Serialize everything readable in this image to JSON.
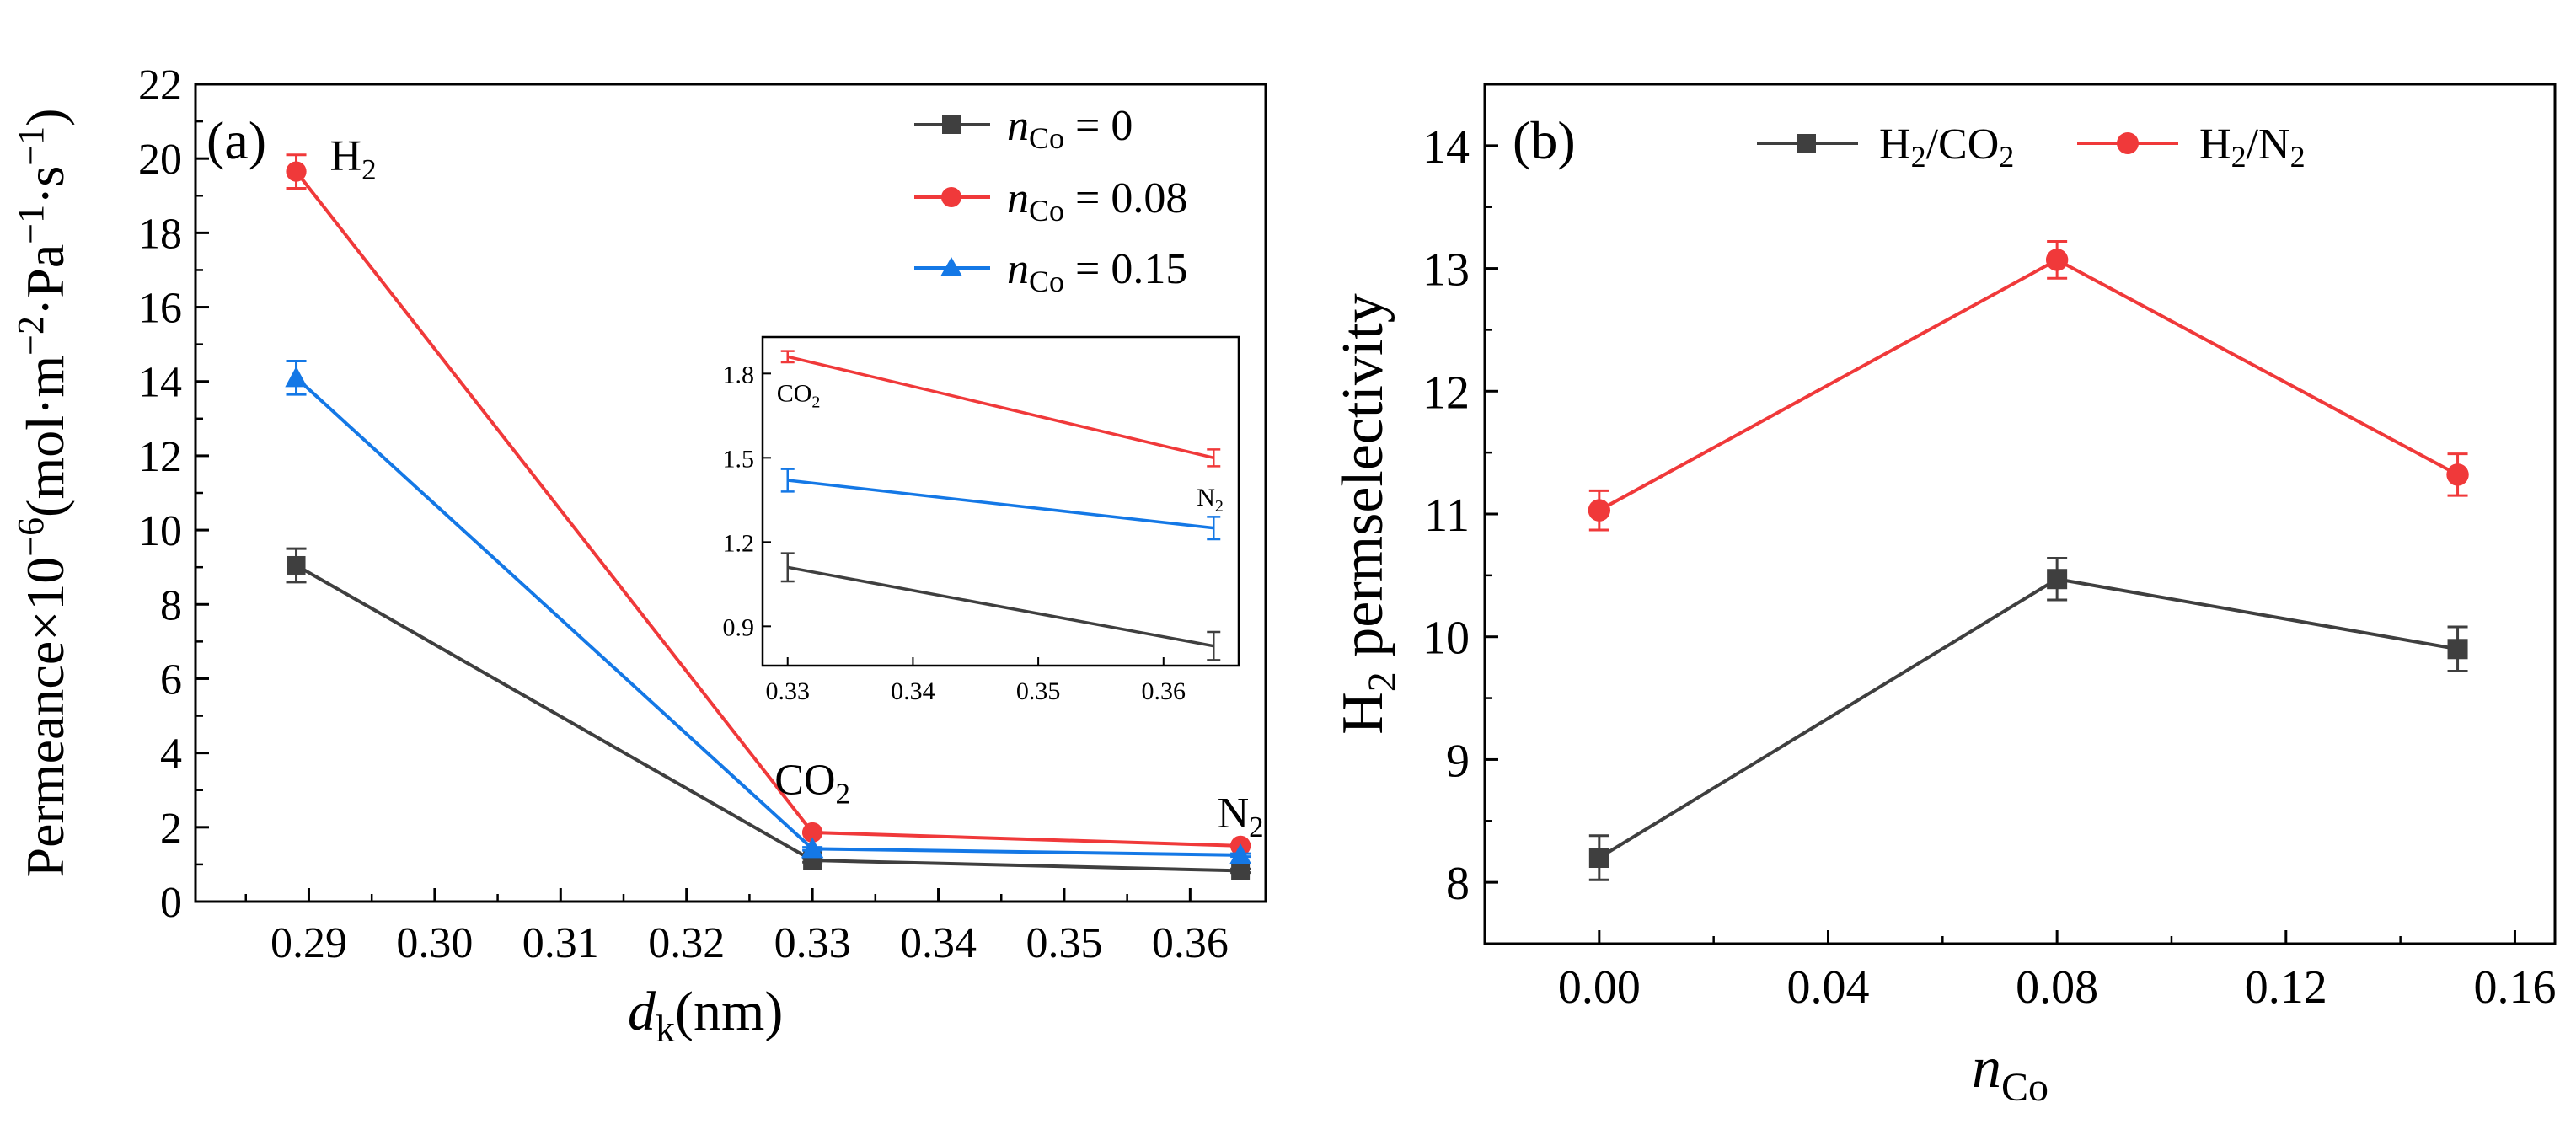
{
  "chart_data": [
    {
      "panel_label": "(a)",
      "type": "line",
      "x": [
        0.289,
        0.33,
        0.364
      ],
      "xlim": [
        0.281,
        0.366
      ],
      "xticks": [
        "0.29",
        "0.30",
        "0.31",
        "0.32",
        "0.33",
        "0.34",
        "0.35",
        "0.36"
      ],
      "ylim": [
        0,
        22
      ],
      "yticks": [
        "0",
        "2",
        "4",
        "6",
        "8",
        "10",
        "12",
        "14",
        "16",
        "18",
        "20",
        "22"
      ],
      "xlabel": {
        "main": "d",
        "sub": "k",
        "rest": "(nm)"
      },
      "ylabel": {
        "p1": "Permeance×10",
        "sup1": "−6",
        "p2": "(mol·m",
        "sup2": "−2",
        "p3": "·Pa",
        "sup3": "−1",
        "p4": "·s",
        "sup4": "−1",
        "p5": ")"
      },
      "gas_labels": [
        {
          "main": "H",
          "sub": "2",
          "x": 0.289,
          "y": 20.1
        },
        {
          "main": "CO",
          "sub": "2",
          "x": 0.33,
          "y": 3.3
        },
        {
          "main": "N",
          "sub": "2",
          "x": 0.364,
          "y": 2.4
        }
      ],
      "legend": {
        "position": "top-right"
      },
      "series": [
        {
          "name_main": "n",
          "name_sub": "Co",
          "name_rest": " = 0",
          "color": "#3f3f3f",
          "marker": "square",
          "values": [
            9.05,
            1.11,
            0.83
          ],
          "errors": [
            0.45,
            0.05,
            0.05
          ]
        },
        {
          "name_main": "n",
          "name_sub": "Co",
          "name_rest": " = 0.08",
          "color": "#f0393a",
          "marker": "circle",
          "values": [
            19.65,
            1.86,
            1.5
          ],
          "errors": [
            0.45,
            0.02,
            0.03
          ]
        },
        {
          "name_main": "n",
          "name_sub": "Co",
          "name_rest": " = 0.15",
          "color": "#1478e6",
          "marker": "triangle",
          "values": [
            14.1,
            1.42,
            1.25
          ],
          "errors": [
            0.45,
            0.04,
            0.04
          ]
        }
      ],
      "inset": {
        "xlim": [
          0.328,
          0.366
        ],
        "xticks": [
          "0.33",
          "0.34",
          "0.35",
          "0.36"
        ],
        "ylim": [
          0.76,
          1.93
        ],
        "yticks": [
          "0.9",
          "1.2",
          "1.5",
          "1.8"
        ],
        "x": [
          0.33,
          0.364
        ],
        "gas_labels": [
          {
            "main": "CO",
            "sub": "2",
            "x": 0.33,
            "y": 1.73
          },
          {
            "main": "N",
            "sub": "2",
            "x": 0.364,
            "y": 1.36
          }
        ]
      }
    },
    {
      "panel_label": "(b)",
      "type": "line",
      "x": [
        0.0,
        0.08,
        0.15
      ],
      "xlim": [
        -0.02,
        0.167
      ],
      "xticks": [
        "0.00",
        "0.04",
        "0.08",
        "0.12",
        "0.16"
      ],
      "ylim": [
        7.5,
        14.5
      ],
      "yticks": [
        "8",
        "9",
        "10",
        "11",
        "12",
        "13",
        "14"
      ],
      "xlabel": {
        "main": "n",
        "sub": "Co"
      },
      "ylabel": {
        "main": "H",
        "sub": "2",
        "rest": " permselectivity"
      },
      "legend": {
        "position": "top"
      },
      "series": [
        {
          "name_main": "H",
          "name_sub1": "2",
          "name_mid": "/CO",
          "name_sub2": "2",
          "color": "#3f3f3f",
          "marker": "square",
          "values": [
            8.2,
            10.47,
            9.9
          ],
          "errors": [
            0.18,
            0.17,
            0.18
          ]
        },
        {
          "name_main": "H",
          "name_sub1": "2",
          "name_mid": "/N",
          "name_sub2": "2",
          "color": "#f0393a",
          "marker": "circle",
          "values": [
            11.03,
            13.07,
            11.32
          ],
          "errors": [
            0.16,
            0.15,
            0.17
          ]
        }
      ]
    }
  ]
}
